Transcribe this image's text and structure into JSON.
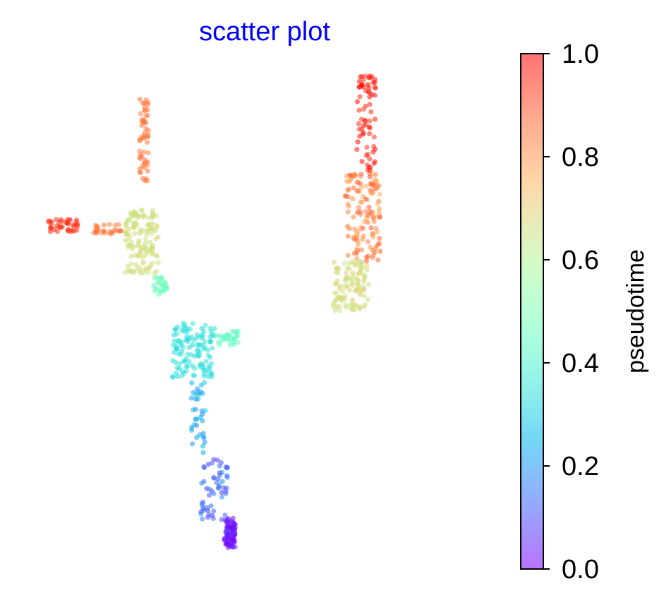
{
  "chart_data": {
    "type": "scatter",
    "title": "scatter plot",
    "title_color": "#0000ff",
    "xlabel": "",
    "ylabel": "",
    "axes_visible": false,
    "grid": false,
    "xlim": [
      0,
      100
    ],
    "ylim": [
      0,
      100
    ],
    "point_opacity": 0.55,
    "colorbar": {
      "label": "pseudotime",
      "colormap": "rainbow",
      "range": [
        0.0,
        1.0
      ],
      "ticks": [
        0.0,
        0.2,
        0.4,
        0.6,
        0.8,
        1.0
      ],
      "tick_labels": [
        "0.0",
        "0.2",
        "0.4",
        "0.6",
        "0.8",
        "1.0"
      ],
      "placement": "right"
    },
    "clusters": [
      {
        "n": 90,
        "x": [
          41.5,
          43.8
        ],
        "y": [
          2.0,
          8.0
        ],
        "pseudotime": [
          0.0,
          0.06
        ]
      },
      {
        "n": 55,
        "x": [
          36.5,
          42.2
        ],
        "y": [
          7.5,
          21.0
        ],
        "pseudotime": [
          0.06,
          0.2
        ]
      },
      {
        "n": 35,
        "x": [
          34.5,
          37.5
        ],
        "y": [
          21.0,
          36.0
        ],
        "pseudotime": [
          0.18,
          0.3
        ]
      },
      {
        "n": 120,
        "x": [
          30.5,
          39.5
        ],
        "y": [
          36.5,
          47.5
        ],
        "pseudotime": [
          0.32,
          0.36
        ]
      },
      {
        "n": 28,
        "x": [
          40.0,
          44.5
        ],
        "y": [
          43.0,
          46.0
        ],
        "pseudotime": [
          0.42,
          0.46
        ]
      },
      {
        "n": 30,
        "x": [
          26.5,
          29.5
        ],
        "y": [
          53.0,
          57.0
        ],
        "pseudotime": [
          0.45,
          0.5
        ]
      },
      {
        "n": 140,
        "x": [
          20.5,
          27.5
        ],
        "y": [
          57.5,
          70.5
        ],
        "pseudotime": [
          0.64,
          0.68
        ]
      },
      {
        "n": 28,
        "x": [
          13.5,
          20.0
        ],
        "y": [
          65.5,
          67.5
        ],
        "pseudotime": [
          0.82,
          0.87
        ]
      },
      {
        "n": 40,
        "x": [
          4.0,
          10.5
        ],
        "y": [
          66.0,
          68.5
        ],
        "pseudotime": [
          0.93,
          0.95
        ]
      },
      {
        "n": 55,
        "x": [
          23.5,
          25.5
        ],
        "y": [
          76.0,
          93.0
        ],
        "pseudotime": [
          0.83,
          0.86
        ]
      },
      {
        "n": 110,
        "x": [
          64.5,
          72.0
        ],
        "y": [
          50.0,
          60.0
        ],
        "pseudotime": [
          0.63,
          0.7
        ]
      },
      {
        "n": 130,
        "x": [
          67.0,
          74.5
        ],
        "y": [
          60.0,
          78.0
        ],
        "pseudotime": [
          0.75,
          0.9
        ]
      },
      {
        "n": 70,
        "x": [
          69.5,
          73.5
        ],
        "y": [
          78.0,
          98.0
        ],
        "pseudotime": [
          0.92,
          1.0
        ]
      }
    ]
  }
}
